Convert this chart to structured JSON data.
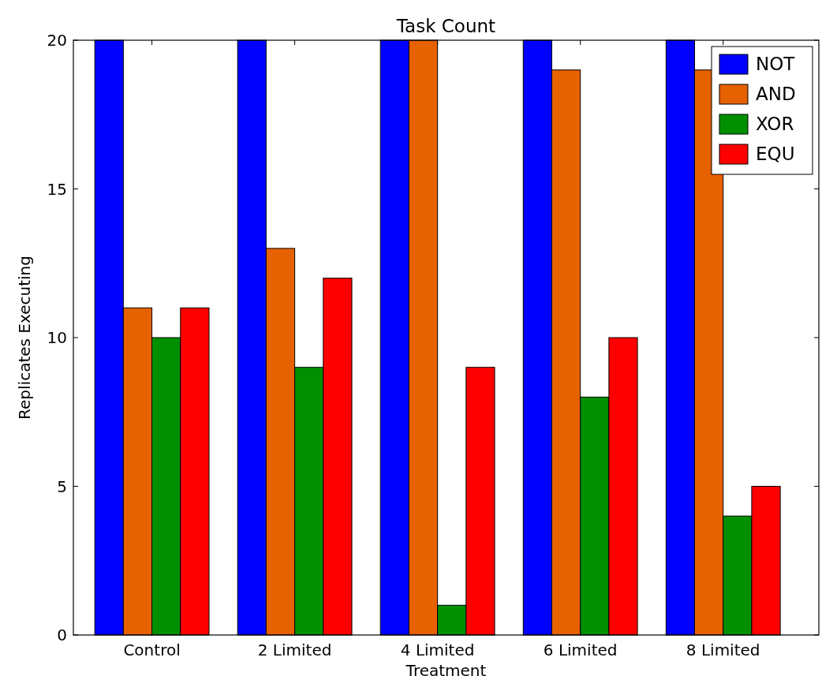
{
  "chart_data": {
    "type": "bar",
    "title": "Task Count",
    "xlabel": "Treatment",
    "ylabel": "Replicates Executing",
    "categories": [
      "Control",
      "2 Limited",
      "4 Limited",
      "6 Limited",
      "8 Limited"
    ],
    "series": [
      {
        "name": "NOT",
        "color": "#0000ff",
        "values": [
          20,
          20,
          20,
          20,
          20
        ]
      },
      {
        "name": "AND",
        "color": "#e66100",
        "values": [
          11,
          13,
          20,
          19,
          19
        ]
      },
      {
        "name": "XOR",
        "color": "#008f00",
        "values": [
          10,
          9,
          1,
          8,
          4
        ]
      },
      {
        "name": "EQU",
        "color": "#ff0000",
        "values": [
          11,
          12,
          9,
          10,
          5
        ]
      }
    ],
    "ylim": [
      0,
      20
    ],
    "yticks": [
      0,
      5,
      10,
      15,
      20
    ],
    "grid": false,
    "legend": "top right"
  }
}
